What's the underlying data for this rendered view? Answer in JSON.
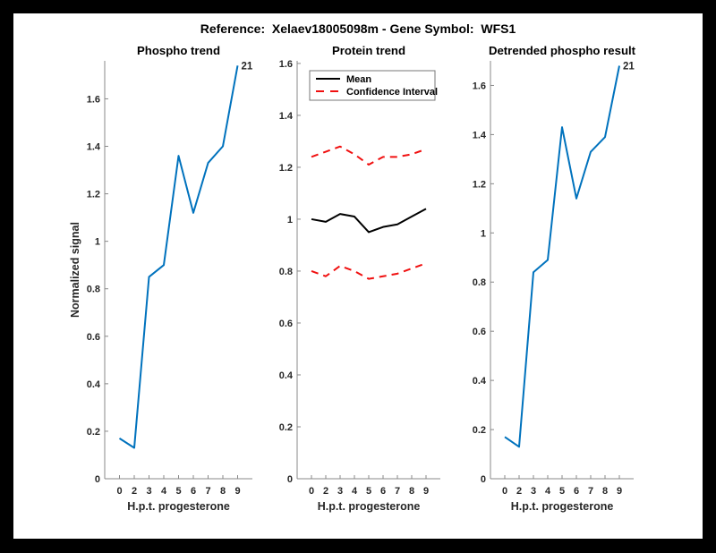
{
  "window": {
    "background": "#000000",
    "canvas_background": "#ffffff"
  },
  "figure_title": "Reference:  Xelaev18005098m - Gene Symbol:  WFS1",
  "colors": {
    "line_blue": "#0072BD",
    "line_red": "#F01010",
    "line_black": "#000000",
    "axis_spine": "#888888",
    "tick_text": "#262626"
  },
  "chart_data": [
    {
      "type": "line",
      "title": "Phospho trend",
      "xlabel": "H.p.t. progesterone",
      "ylabel": "Normalized signal",
      "xlim": [
        0,
        10
      ],
      "ylim": [
        0,
        1.76
      ],
      "grid": false,
      "x_positions": [
        1,
        2,
        3,
        4,
        5,
        6,
        7,
        8,
        9
      ],
      "x_tick_labels": [
        "0",
        "2",
        "3",
        "4",
        "5",
        "6",
        "7",
        "8",
        "9"
      ],
      "y_ticks": [
        0,
        0.2,
        0.4,
        0.6,
        0.8,
        1,
        1.2,
        1.4,
        1.6
      ],
      "series": [
        {
          "name": "phospho-line",
          "color": "#0072BD",
          "dash": "solid",
          "width": 2,
          "values": [
            0.17,
            0.13,
            0.85,
            0.9,
            1.36,
            1.12,
            1.33,
            1.4,
            1.74
          ]
        }
      ],
      "end_label": "21"
    },
    {
      "type": "line",
      "title": "Protein trend",
      "xlabel": "H.p.t. progesterone",
      "ylabel": "",
      "xlim": [
        0,
        10
      ],
      "ylim": [
        0,
        1.61
      ],
      "grid": false,
      "x_positions": [
        1,
        2,
        3,
        4,
        5,
        6,
        7,
        8,
        9
      ],
      "x_tick_labels": [
        "0",
        "2",
        "3",
        "4",
        "5",
        "6",
        "7",
        "8",
        "9"
      ],
      "y_ticks": [
        0,
        0.2,
        0.4,
        0.6,
        0.8,
        1,
        1.2,
        1.4,
        1.6
      ],
      "legend": {
        "position": "top-left",
        "entries": [
          {
            "label": "Mean",
            "color": "#000000",
            "dash": "solid"
          },
          {
            "label": "Confidence Interval",
            "color": "#F01010",
            "dash": "dashed"
          }
        ]
      },
      "series": [
        {
          "name": "ci-upper-line",
          "color": "#F01010",
          "dash": "dashed",
          "width": 2,
          "values": [
            1.24,
            1.26,
            1.28,
            1.25,
            1.21,
            1.24,
            1.24,
            1.25,
            1.27
          ]
        },
        {
          "name": "ci-lower-line",
          "color": "#F01010",
          "dash": "dashed",
          "width": 2,
          "values": [
            0.8,
            0.78,
            0.82,
            0.8,
            0.77,
            0.78,
            0.79,
            0.81,
            0.83
          ]
        },
        {
          "name": "mean-line",
          "color": "#000000",
          "dash": "solid",
          "width": 2,
          "values": [
            1.0,
            0.99,
            1.02,
            1.01,
            0.95,
            0.97,
            0.98,
            1.01,
            1.04
          ]
        }
      ]
    },
    {
      "type": "line",
      "title": "Detrended phospho result",
      "xlabel": "H.p.t. progesterone",
      "ylabel": "",
      "xlim": [
        0,
        10
      ],
      "ylim": [
        0,
        1.7
      ],
      "grid": false,
      "x_positions": [
        1,
        2,
        3,
        4,
        5,
        6,
        7,
        8,
        9
      ],
      "x_tick_labels": [
        "0",
        "2",
        "3",
        "4",
        "5",
        "6",
        "7",
        "8",
        "9"
      ],
      "y_ticks": [
        0,
        0.2,
        0.4,
        0.6,
        0.8,
        1,
        1.2,
        1.4,
        1.6
      ],
      "series": [
        {
          "name": "detrended-line",
          "color": "#0072BD",
          "dash": "solid",
          "width": 2,
          "values": [
            0.17,
            0.13,
            0.84,
            0.89,
            1.43,
            1.14,
            1.33,
            1.39,
            1.68
          ]
        }
      ],
      "end_label": "21"
    }
  ]
}
